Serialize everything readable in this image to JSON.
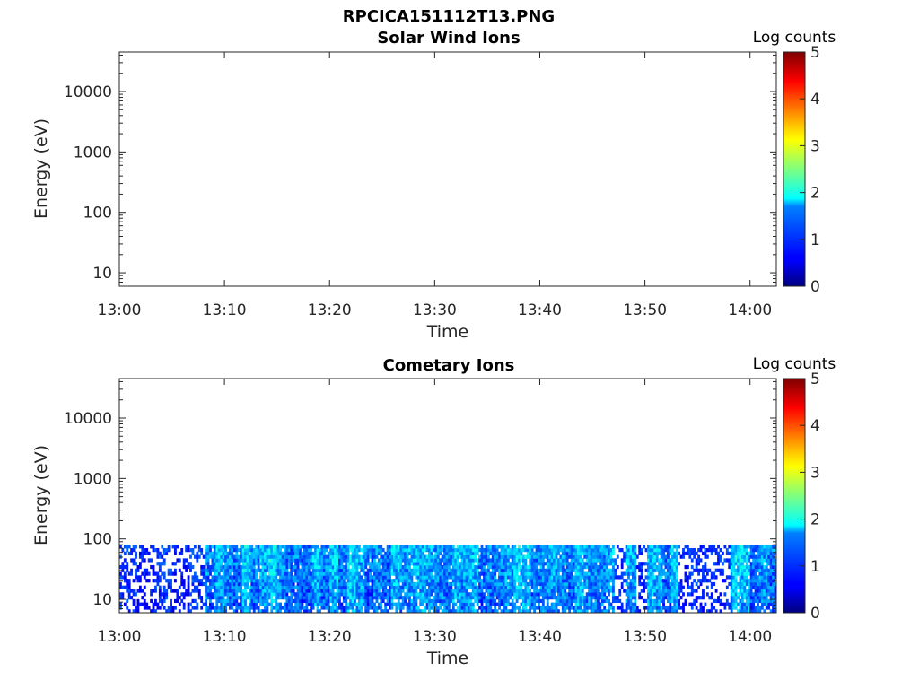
{
  "figure": {
    "title": "RPCICA151112T13.PNG"
  },
  "chart_data": [
    {
      "type": "heatmap",
      "title": "Solar Wind Ions",
      "xlabel": "Time",
      "ylabel": "Energy (eV)",
      "y_scale": "log",
      "ylim": [
        6,
        45000
      ],
      "xlim": [
        "13:00",
        "14:02:30"
      ],
      "x_ticks": [
        "13:00",
        "13:10",
        "13:20",
        "13:30",
        "13:40",
        "13:50",
        "14:00"
      ],
      "y_ticks": [
        "10",
        "100",
        "1000",
        "10000"
      ],
      "colorbar": {
        "label": "Log counts",
        "range": [
          0,
          5
        ],
        "ticks": [
          "0",
          "1",
          "2",
          "3",
          "4",
          "5"
        ],
        "colormap": "jet"
      },
      "data_description": "empty",
      "energy_max": null
    },
    {
      "type": "heatmap",
      "title": "Cometary Ions",
      "xlabel": "Time",
      "ylabel": "Energy (eV)",
      "y_scale": "log",
      "ylim": [
        6,
        45000
      ],
      "xlim": [
        "13:00",
        "14:02:30"
      ],
      "x_ticks": [
        "13:00",
        "13:10",
        "13:20",
        "13:30",
        "13:40",
        "13:50",
        "14:00"
      ],
      "y_ticks": [
        "10",
        "100",
        "1000",
        "10000"
      ],
      "colorbar": {
        "label": "Log counts",
        "range": [
          0,
          5
        ],
        "ticks": [
          "0",
          "1",
          "2",
          "3",
          "4",
          "5"
        ],
        "colormap": "jet"
      },
      "energy_max": 80,
      "energy_min": 6,
      "typical_log_counts": [
        0.5,
        2.2
      ],
      "sparse_intervals": [
        "13:00-13:08",
        "13:47-13:48",
        "13:49-13:50",
        "13:53-13:58"
      ]
    }
  ]
}
